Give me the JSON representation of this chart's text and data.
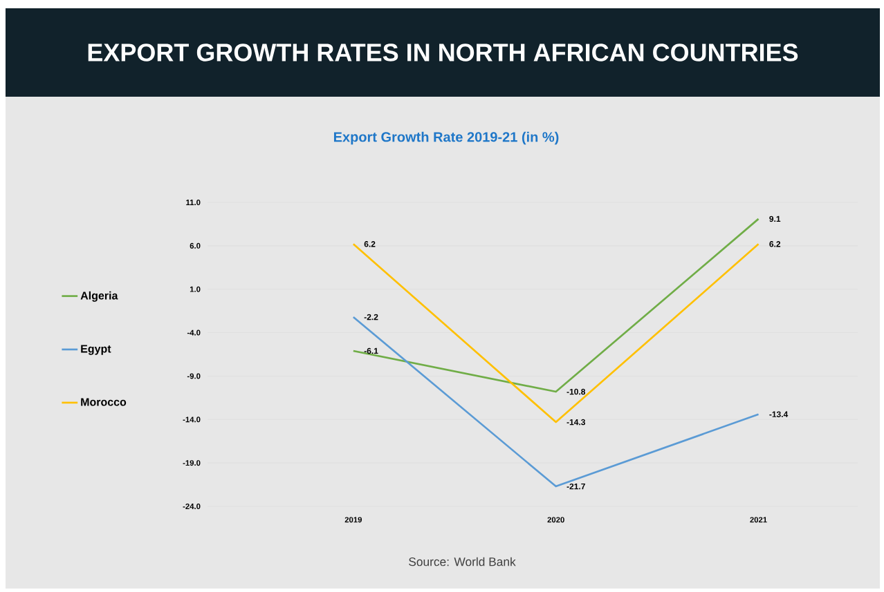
{
  "chart_data": {
    "type": "line",
    "title": "EXPORT GROWTH RATES IN NORTH AFRICAN COUNTRIES",
    "subtitle": "Export Growth Rate 2019-21 (in %)",
    "annotations": [
      "Source: World Bank"
    ],
    "categories": [
      "2019",
      "2020",
      "2021"
    ],
    "series": [
      {
        "name": "Algeria",
        "color": "#70ad47",
        "values": [
          -6.1,
          -10.8,
          9.1
        ]
      },
      {
        "name": "Egypt",
        "color": "#5b9bd5",
        "values": [
          -2.2,
          -21.7,
          -13.4
        ]
      },
      {
        "name": "Morocco",
        "color": "#ffc000",
        "values": [
          6.2,
          -14.3,
          6.2
        ]
      }
    ],
    "ylim": [
      -24,
      11
    ],
    "yticks": [
      {
        "value": 11,
        "label": "11.0"
      },
      {
        "value": 6,
        "label": "6.0"
      },
      {
        "value": 1,
        "label": "1.0"
      },
      {
        "value": -4,
        "label": "-4.0"
      },
      {
        "value": -9,
        "label": "-9.0"
      },
      {
        "value": -14,
        "label": "-14.0"
      },
      {
        "value": -19,
        "label": "-19.0"
      },
      {
        "value": -24,
        "label": "-24.0"
      }
    ],
    "grid": "y",
    "legend": "left",
    "marker": "none",
    "line_style": "solid",
    "data_labels": true
  }
}
